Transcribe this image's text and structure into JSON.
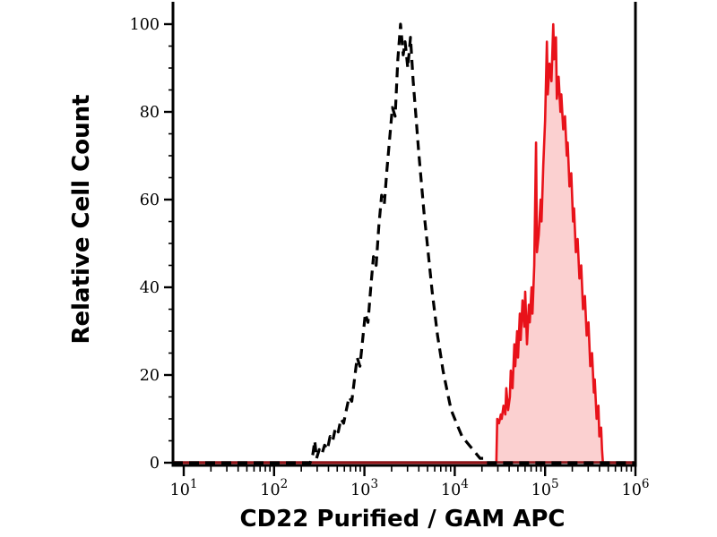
{
  "chart_data": {
    "type": "area",
    "title": "",
    "xlabel": "CD22 Purified / GAM APC",
    "ylabel": "Relative Cell Count",
    "x_scale": "log10",
    "xlim_log": [
      1,
      6
    ],
    "ylim": [
      0,
      100
    ],
    "y_ticks": [
      0,
      20,
      40,
      60,
      80,
      100
    ],
    "y_minor_step": 5,
    "x_major_tick_exponents": [
      1,
      2,
      3,
      4,
      5,
      6
    ],
    "x_tick_base": "10",
    "x_minor_mantissas": [
      2,
      3,
      4,
      5,
      6,
      7,
      8,
      9
    ],
    "grid": false,
    "legend": "none",
    "series": [
      {
        "name": "dashed-black-histogram",
        "style": "dashed",
        "color": "#000000",
        "points": [
          [
            2.4,
            0
          ],
          [
            2.43,
            2
          ],
          [
            2.45,
            5
          ],
          [
            2.47,
            1
          ],
          [
            2.5,
            3
          ],
          [
            2.53,
            2
          ],
          [
            2.56,
            4
          ],
          [
            2.59,
            3
          ],
          [
            2.62,
            6
          ],
          [
            2.65,
            5
          ],
          [
            2.68,
            8
          ],
          [
            2.71,
            7
          ],
          [
            2.74,
            10
          ],
          [
            2.77,
            9
          ],
          [
            2.8,
            12
          ],
          [
            2.83,
            15
          ],
          [
            2.86,
            14
          ],
          [
            2.89,
            19
          ],
          [
            2.92,
            24
          ],
          [
            2.95,
            22
          ],
          [
            2.98,
            28
          ],
          [
            3.01,
            34
          ],
          [
            3.04,
            32
          ],
          [
            3.07,
            40
          ],
          [
            3.1,
            47
          ],
          [
            3.13,
            45
          ],
          [
            3.16,
            54
          ],
          [
            3.19,
            61
          ],
          [
            3.22,
            59
          ],
          [
            3.25,
            67
          ],
          [
            3.28,
            74
          ],
          [
            3.31,
            81
          ],
          [
            3.34,
            79
          ],
          [
            3.37,
            92
          ],
          [
            3.4,
            100
          ],
          [
            3.43,
            93
          ],
          [
            3.45,
            96
          ],
          [
            3.48,
            90
          ],
          [
            3.51,
            97
          ],
          [
            3.54,
            87
          ],
          [
            3.57,
            79
          ],
          [
            3.6,
            71
          ],
          [
            3.63,
            64
          ],
          [
            3.66,
            57
          ],
          [
            3.69,
            51
          ],
          [
            3.72,
            45
          ],
          [
            3.75,
            39
          ],
          [
            3.78,
            34
          ],
          [
            3.81,
            29
          ],
          [
            3.84,
            25
          ],
          [
            3.87,
            21
          ],
          [
            3.9,
            18
          ],
          [
            3.93,
            15
          ],
          [
            3.96,
            12
          ],
          [
            4.0,
            10
          ],
          [
            4.04,
            8
          ],
          [
            4.08,
            6
          ],
          [
            4.12,
            5
          ],
          [
            4.16,
            4
          ],
          [
            4.2,
            3
          ],
          [
            4.24,
            2
          ],
          [
            4.28,
            1
          ],
          [
            4.32,
            1
          ],
          [
            4.35,
            0
          ]
        ]
      },
      {
        "name": "red-filled-histogram",
        "style": "solid-filled",
        "color": "#e8121a",
        "fill": "#fbd0d0",
        "points": [
          [
            4.46,
            0
          ],
          [
            4.47,
            10
          ],
          [
            4.49,
            9
          ],
          [
            4.51,
            11
          ],
          [
            4.52,
            10
          ],
          [
            4.54,
            13
          ],
          [
            4.56,
            11
          ],
          [
            4.57,
            17
          ],
          [
            4.59,
            12
          ],
          [
            4.61,
            15
          ],
          [
            4.62,
            21
          ],
          [
            4.64,
            17
          ],
          [
            4.66,
            27
          ],
          [
            4.67,
            22
          ],
          [
            4.69,
            30
          ],
          [
            4.7,
            24
          ],
          [
            4.72,
            34
          ],
          [
            4.73,
            28
          ],
          [
            4.75,
            37
          ],
          [
            4.77,
            31
          ],
          [
            4.78,
            39
          ],
          [
            4.8,
            27
          ],
          [
            4.82,
            36
          ],
          [
            4.83,
            32
          ],
          [
            4.85,
            40
          ],
          [
            4.86,
            34
          ],
          [
            4.88,
            45
          ],
          [
            4.9,
            73
          ],
          [
            4.91,
            48
          ],
          [
            4.93,
            52
          ],
          [
            4.95,
            60
          ],
          [
            4.96,
            55
          ],
          [
            4.98,
            68
          ],
          [
            5.0,
            78
          ],
          [
            5.02,
            96
          ],
          [
            5.03,
            84
          ],
          [
            5.05,
            91
          ],
          [
            5.07,
            87
          ],
          [
            5.09,
            100
          ],
          [
            5.1,
            92
          ],
          [
            5.12,
            97
          ],
          [
            5.13,
            83
          ],
          [
            5.15,
            88
          ],
          [
            5.17,
            80
          ],
          [
            5.18,
            84
          ],
          [
            5.2,
            76
          ],
          [
            5.22,
            79
          ],
          [
            5.24,
            70
          ],
          [
            5.25,
            73
          ],
          [
            5.27,
            63
          ],
          [
            5.29,
            66
          ],
          [
            5.31,
            55
          ],
          [
            5.32,
            58
          ],
          [
            5.34,
            48
          ],
          [
            5.36,
            51
          ],
          [
            5.38,
            42
          ],
          [
            5.4,
            45
          ],
          [
            5.42,
            35
          ],
          [
            5.44,
            38
          ],
          [
            5.46,
            29
          ],
          [
            5.48,
            32
          ],
          [
            5.5,
            22
          ],
          [
            5.52,
            25
          ],
          [
            5.54,
            16
          ],
          [
            5.55,
            19
          ],
          [
            5.57,
            10
          ],
          [
            5.59,
            13
          ],
          [
            5.6,
            6
          ],
          [
            5.62,
            8
          ],
          [
            5.63,
            3
          ],
          [
            5.64,
            0
          ]
        ]
      }
    ],
    "colors": {
      "axis": "#000000",
      "tick_text": "#000000",
      "red_stroke": "#e8121a",
      "red_fill": "#fbd0d0",
      "baseline_overlay": "#8c1418",
      "background": "#ffffff"
    }
  }
}
